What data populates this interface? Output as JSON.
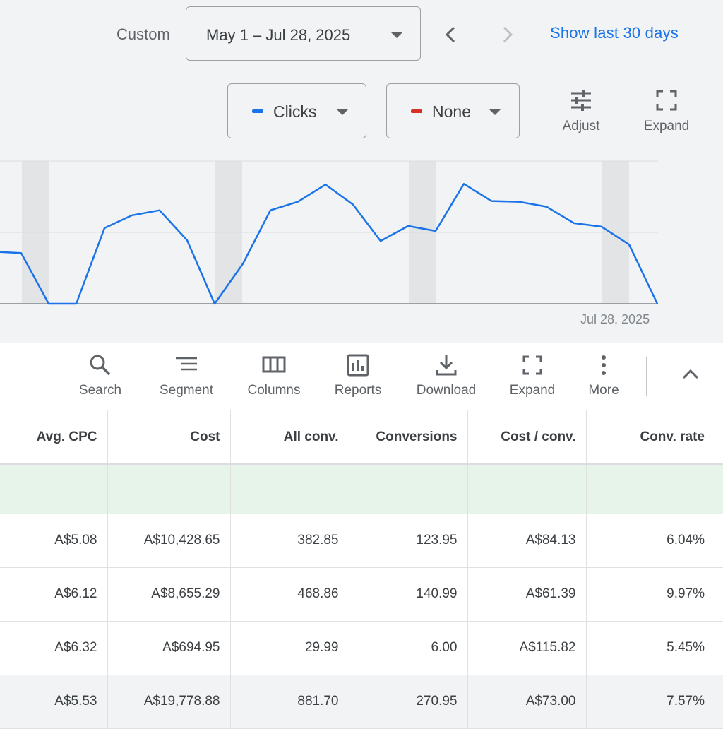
{
  "header": {
    "range_label": "Custom",
    "date_range": "May 1 – Jul 28, 2025",
    "prev_label": "‹",
    "next_label": "›",
    "show_last_label": "Show last 30 days"
  },
  "chart_controls": {
    "metric1": {
      "label": "Clicks",
      "color": "#1a73e8"
    },
    "metric2": {
      "label": "None",
      "color": "#d93025"
    },
    "adjust_label": "Adjust",
    "expand_label": "Expand"
  },
  "chart_data": {
    "type": "line",
    "series": [
      {
        "name": "Clicks",
        "color": "#1a73e8",
        "values": [
          0.73,
          0.71,
          0.0,
          0.0,
          1.06,
          1.24,
          1.31,
          0.89,
          0.0,
          0.56,
          1.31,
          1.43,
          1.67,
          1.39,
          0.88,
          1.09,
          1.02,
          1.68,
          1.44,
          1.43,
          1.36,
          1.13,
          1.08,
          0.83,
          0.0
        ]
      }
    ],
    "ylim": [
      0,
      2
    ],
    "grid": true,
    "end_date_label": "Jul 28, 2025"
  },
  "toolbar": {
    "items": [
      {
        "label": "Search",
        "icon": "search-icon"
      },
      {
        "label": "Segment",
        "icon": "segment-icon"
      },
      {
        "label": "Columns",
        "icon": "columns-icon"
      },
      {
        "label": "Reports",
        "icon": "reports-icon"
      },
      {
        "label": "Download",
        "icon": "download-icon"
      },
      {
        "label": "Expand",
        "icon": "expand-icon"
      },
      {
        "label": "More",
        "icon": "more-vert-icon"
      }
    ]
  },
  "table": {
    "columns": [
      "Avg. CPC",
      "Cost",
      "All conv.",
      "Conversions",
      "Cost / conv.",
      "Conv. rate"
    ],
    "rows": [
      [
        "A$5.08",
        "A$10,428.65",
        "382.85",
        "123.95",
        "A$84.13",
        "6.04%"
      ],
      [
        "A$6.12",
        "A$8,655.29",
        "468.86",
        "140.99",
        "A$61.39",
        "9.97%"
      ],
      [
        "A$6.32",
        "A$694.95",
        "29.99",
        "6.00",
        "A$115.82",
        "5.45%"
      ],
      [
        "A$5.53",
        "A$19,778.88",
        "881.70",
        "270.95",
        "A$73.00",
        "7.57%"
      ]
    ]
  }
}
